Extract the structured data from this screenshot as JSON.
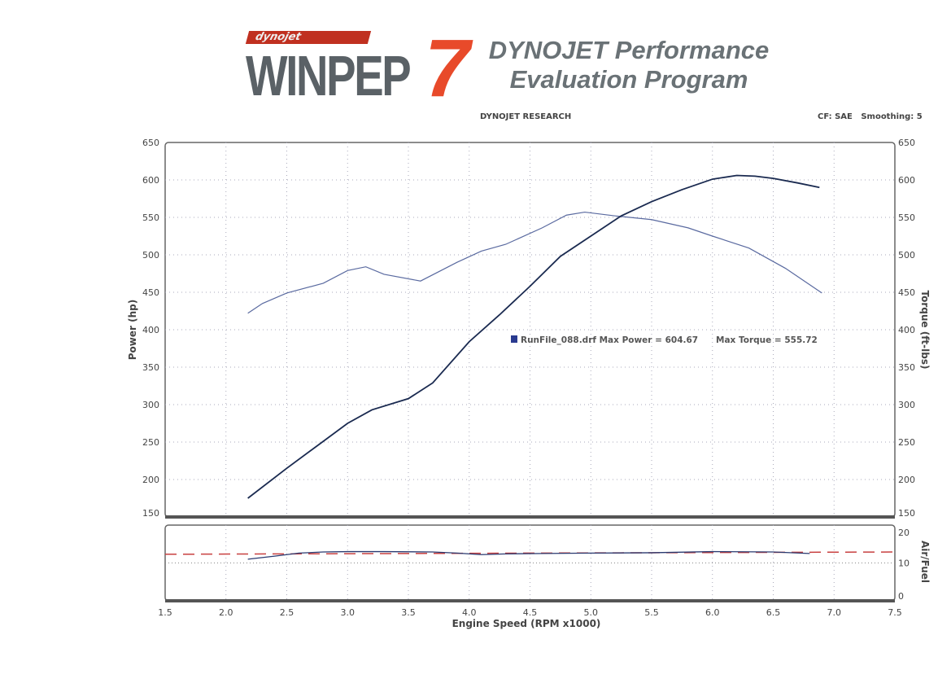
{
  "header": {
    "logo_small": "dynojet",
    "logo_main": "WINPEP",
    "logo_number": "7",
    "title_line1": "DYNOJET Performance",
    "title_line2": "Evaluation Program",
    "company": "DYNOJET RESEARCH",
    "settings": "CF: SAE   Smoothing: 5"
  },
  "colors": {
    "power": "#1a2a50",
    "torque": "#5a6aa0",
    "afr": "#2a3a70",
    "afr_target": "#c84040",
    "grid": "#aab",
    "frame": "#666"
  },
  "chart_data": [
    {
      "type": "line",
      "xlabel": "Engine Speed (RPM x1000)",
      "ylabel": "Power (hp)",
      "ylabel_right": "Torque (ft-lbs)",
      "xlim": [
        1.5,
        7.5
      ],
      "ylim": [
        150,
        650
      ],
      "xticks": [
        "1.5",
        "2.0",
        "2.5",
        "3.0",
        "3.5",
        "4.0",
        "4.5",
        "5.0",
        "5.5",
        "6.0",
        "6.5",
        "7.0",
        "7.5"
      ],
      "yticks": [
        "150",
        "200",
        "250",
        "300",
        "350",
        "400",
        "450",
        "500",
        "550",
        "600",
        "650"
      ],
      "grid": true,
      "legend": {
        "file": "RunFile_088.drf",
        "max_power": "Max Power = 604.67",
        "max_torque": "Max Torque = 555.72"
      },
      "series": [
        {
          "name": "Power",
          "x": [
            2.18,
            2.5,
            2.75,
            3.0,
            3.2,
            3.5,
            3.7,
            4.0,
            4.25,
            4.5,
            4.75,
            5.0,
            5.25,
            5.5,
            5.75,
            6.0,
            6.2,
            6.35,
            6.5,
            6.7,
            6.88
          ],
          "y": [
            175,
            215,
            245,
            275,
            293,
            308,
            329,
            384,
            420,
            458,
            498,
            525,
            552,
            571,
            587,
            601,
            606,
            605,
            602,
            596,
            590
          ]
        },
        {
          "name": "Torque",
          "x": [
            2.18,
            2.3,
            2.5,
            2.8,
            3.0,
            3.15,
            3.3,
            3.6,
            3.9,
            4.1,
            4.3,
            4.6,
            4.8,
            4.95,
            5.2,
            5.5,
            5.8,
            6.0,
            6.3,
            6.6,
            6.9
          ],
          "y": [
            422,
            435,
            449,
            462,
            479,
            484,
            474,
            465,
            490,
            505,
            514,
            536,
            553,
            557,
            552,
            547,
            536,
            525,
            509,
            482,
            449
          ]
        }
      ]
    },
    {
      "type": "line",
      "ylabel_right": "Air/Fuel",
      "xlim": [
        1.5,
        7.5
      ],
      "ylim": [
        0,
        20
      ],
      "yticks": [
        "0",
        "10",
        "20"
      ],
      "series": [
        {
          "name": "Air/Fuel",
          "x": [
            2.18,
            2.4,
            2.6,
            2.8,
            3.0,
            3.3,
            3.7,
            3.9,
            4.1,
            4.3,
            4.6,
            5.0,
            5.5,
            6.0,
            6.5,
            6.8
          ],
          "y": [
            11.0,
            11.8,
            12.6,
            12.9,
            13.0,
            13.0,
            12.9,
            12.6,
            12.2,
            12.4,
            12.5,
            12.6,
            12.7,
            13.0,
            12.9,
            12.5
          ]
        },
        {
          "name": "Target",
          "x": [
            1.5,
            7.5
          ],
          "y": [
            12.3,
            12.9
          ]
        }
      ]
    }
  ]
}
